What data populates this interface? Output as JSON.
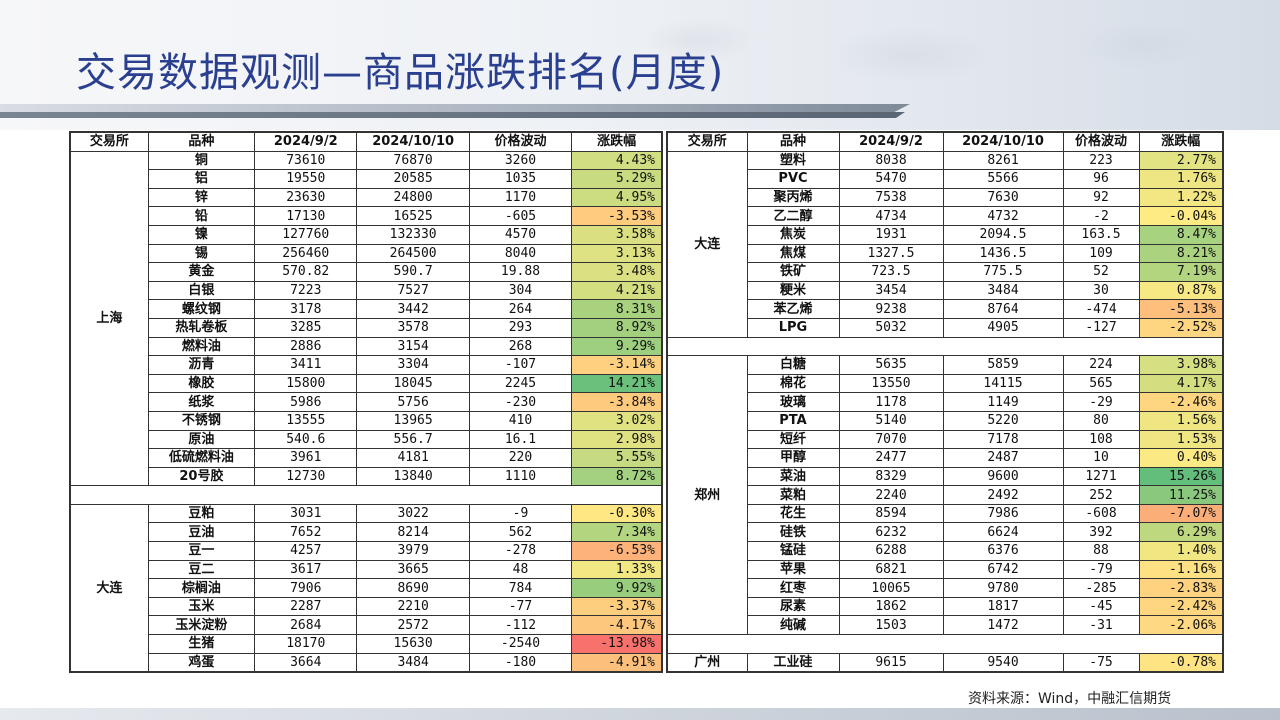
{
  "title": "交易数据观测—商品涨跌排名(月度)",
  "source": "资料来源：Wind，中融汇信期货",
  "headers": [
    "交易所",
    "品种",
    "2024/9/2",
    "2024/10/10",
    "价格波动",
    "涨跌幅"
  ],
  "left_groups": [
    {
      "exchange": "上海",
      "rows": [
        [
          "铜",
          "73610",
          "76870",
          "3260",
          "4.43%",
          4.43
        ],
        [
          "铝",
          "19550",
          "20585",
          "1035",
          "5.29%",
          5.29
        ],
        [
          "锌",
          "23630",
          "24800",
          "1170",
          "4.95%",
          4.95
        ],
        [
          "铅",
          "17130",
          "16525",
          "-605",
          "-3.53%",
          -3.53
        ],
        [
          "镍",
          "127760",
          "132330",
          "4570",
          "3.58%",
          3.58
        ],
        [
          "锡",
          "256460",
          "264500",
          "8040",
          "3.13%",
          3.13
        ],
        [
          "黄金",
          "570.82",
          "590.7",
          "19.88",
          "3.48%",
          3.48
        ],
        [
          "白银",
          "7223",
          "7527",
          "304",
          "4.21%",
          4.21
        ],
        [
          "螺纹钢",
          "3178",
          "3442",
          "264",
          "8.31%",
          8.31
        ],
        [
          "热轧卷板",
          "3285",
          "3578",
          "293",
          "8.92%",
          8.92
        ],
        [
          "燃料油",
          "2886",
          "3154",
          "268",
          "9.29%",
          9.29
        ],
        [
          "沥青",
          "3411",
          "3304",
          "-107",
          "-3.14%",
          -3.14
        ],
        [
          "橡胶",
          "15800",
          "18045",
          "2245",
          "14.21%",
          14.21
        ],
        [
          "纸浆",
          "5986",
          "5756",
          "-230",
          "-3.84%",
          -3.84
        ],
        [
          "不锈钢",
          "13555",
          "13965",
          "410",
          "3.02%",
          3.02
        ],
        [
          "原油",
          "540.6",
          "556.7",
          "16.1",
          "2.98%",
          2.98
        ],
        [
          "低硫燃料油",
          "3961",
          "4181",
          "220",
          "5.55%",
          5.55
        ],
        [
          "20号胶",
          "12730",
          "13840",
          "1110",
          "8.72%",
          8.72
        ]
      ]
    },
    {
      "exchange": "大连",
      "rows": [
        [
          "豆粕",
          "3031",
          "3022",
          "-9",
          "-0.30%",
          -0.3
        ],
        [
          "豆油",
          "7652",
          "8214",
          "562",
          "7.34%",
          7.34
        ],
        [
          "豆一",
          "4257",
          "3979",
          "-278",
          "-6.53%",
          -6.53
        ],
        [
          "豆二",
          "3617",
          "3665",
          "48",
          "1.33%",
          1.33
        ],
        [
          "棕榈油",
          "7906",
          "8690",
          "784",
          "9.92%",
          9.92
        ],
        [
          "玉米",
          "2287",
          "2210",
          "-77",
          "-3.37%",
          -3.37
        ],
        [
          "玉米淀粉",
          "2684",
          "2572",
          "-112",
          "-4.17%",
          -4.17
        ],
        [
          "生猪",
          "18170",
          "15630",
          "-2540",
          "-13.98%",
          -13.98
        ],
        [
          "鸡蛋",
          "3664",
          "3484",
          "-180",
          "-4.91%",
          -4.91
        ]
      ]
    }
  ],
  "right_groups": [
    {
      "exchange": "大连",
      "rows": [
        [
          "塑料",
          "8038",
          "8261",
          "223",
          "2.77%",
          2.77
        ],
        [
          "PVC",
          "5470",
          "5566",
          "96",
          "1.76%",
          1.76
        ],
        [
          "聚丙烯",
          "7538",
          "7630",
          "92",
          "1.22%",
          1.22
        ],
        [
          "乙二醇",
          "4734",
          "4732",
          "-2",
          "-0.04%",
          -0.04
        ],
        [
          "焦炭",
          "1931",
          "2094.5",
          "163.5",
          "8.47%",
          8.47
        ],
        [
          "焦煤",
          "1327.5",
          "1436.5",
          "109",
          "8.21%",
          8.21
        ],
        [
          "铁矿",
          "723.5",
          "775.5",
          "52",
          "7.19%",
          7.19
        ],
        [
          "粳米",
          "3454",
          "3484",
          "30",
          "0.87%",
          0.87
        ],
        [
          "苯乙烯",
          "9238",
          "8764",
          "-474",
          "-5.13%",
          -5.13
        ],
        [
          "LPG",
          "5032",
          "4905",
          "-127",
          "-2.52%",
          -2.52
        ]
      ]
    },
    {
      "exchange": "郑州",
      "rows": [
        [
          "白糖",
          "5635",
          "5859",
          "224",
          "3.98%",
          3.98
        ],
        [
          "棉花",
          "13550",
          "14115",
          "565",
          "4.17%",
          4.17
        ],
        [
          "玻璃",
          "1178",
          "1149",
          "-29",
          "-2.46%",
          -2.46
        ],
        [
          "PTA",
          "5140",
          "5220",
          "80",
          "1.56%",
          1.56
        ],
        [
          "短纤",
          "7070",
          "7178",
          "108",
          "1.53%",
          1.53
        ],
        [
          "甲醇",
          "2477",
          "2487",
          "10",
          "0.40%",
          0.4
        ],
        [
          "菜油",
          "8329",
          "9600",
          "1271",
          "15.26%",
          15.26
        ],
        [
          "菜粕",
          "2240",
          "2492",
          "252",
          "11.25%",
          11.25
        ],
        [
          "花生",
          "8594",
          "7986",
          "-608",
          "-7.07%",
          -7.07
        ],
        [
          "硅铁",
          "6232",
          "6624",
          "392",
          "6.29%",
          6.29
        ],
        [
          "锰硅",
          "6288",
          "6376",
          "88",
          "1.40%",
          1.4
        ],
        [
          "苹果",
          "6821",
          "6742",
          "-79",
          "-1.16%",
          -1.16
        ],
        [
          "红枣",
          "10065",
          "9780",
          "-285",
          "-2.83%",
          -2.83
        ],
        [
          "尿素",
          "1862",
          "1817",
          "-45",
          "-2.42%",
          -2.42
        ],
        [
          "纯碱",
          "1503",
          "1472",
          "-31",
          "-2.06%",
          -2.06
        ]
      ]
    },
    {
      "exchange": "广州",
      "rows": [
        [
          "工业硅",
          "9615",
          "9540",
          "-75",
          "-0.78%",
          -0.78
        ]
      ]
    }
  ]
}
